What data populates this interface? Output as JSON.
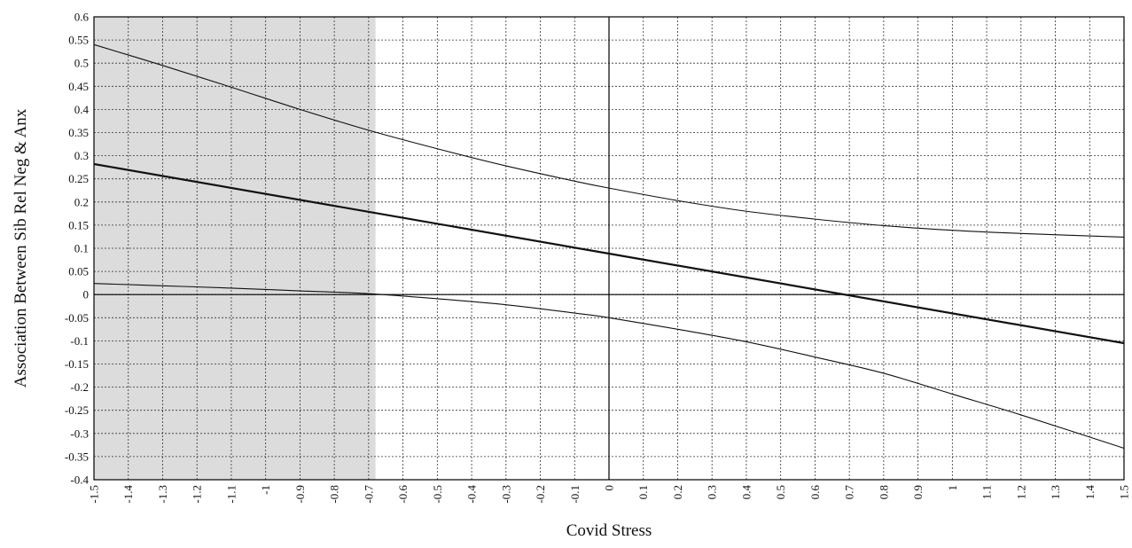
{
  "chart_data": {
    "type": "line",
    "title": "",
    "xlabel": "Covid Stress",
    "ylabel": "Association Between Sib Rel Neg & Anx",
    "xlim": [
      -1.5,
      1.5
    ],
    "ylim": [
      -0.4,
      0.6
    ],
    "x_ticks": [
      "-1.5",
      "-1.4",
      "-1.3",
      "-1.2",
      "-1.1",
      "-1",
      "-0.9",
      "-0.8",
      "-0.7",
      "-0.6",
      "-0.5",
      "-0.4",
      "-0.3",
      "-0.2",
      "-0.1",
      "0",
      "0.1",
      "0.2",
      "0.3",
      "0.4",
      "0.5",
      "0.6",
      "0.7",
      "0.8",
      "0.9",
      "1",
      "1.1",
      "1.2",
      "1.3",
      "1.4",
      "1.5"
    ],
    "y_ticks": [
      "0.6",
      "0.55",
      "0.5",
      "0.45",
      "0.4",
      "0.35",
      "0.3",
      "0.25",
      "0.2",
      "0.15",
      "0.1",
      "0.05",
      "0",
      "-0.05",
      "-0.1",
      "-0.15",
      "-0.2",
      "-0.25",
      "-0.3",
      "-0.35",
      "-0.4"
    ],
    "grid": true,
    "shaded_region": {
      "x_from": -1.5,
      "x_to": -0.68,
      "color": "#dcdcdc"
    },
    "series": [
      {
        "role": "upper-bound",
        "x": [
          -1.5,
          -1.3,
          -1.1,
          -0.9,
          -0.7,
          -0.5,
          -0.3,
          -0.1,
          0,
          0.2,
          0.4,
          0.6,
          0.8,
          1.0,
          1.2,
          1.5
        ],
        "values": [
          0.54,
          0.495,
          0.448,
          0.4,
          0.355,
          0.315,
          0.278,
          0.245,
          0.23,
          0.203,
          0.18,
          0.163,
          0.149,
          0.139,
          0.132,
          0.124
        ]
      },
      {
        "role": "estimate",
        "x": [
          -1.5,
          1.5
        ],
        "values": [
          0.282,
          -0.105
        ]
      },
      {
        "role": "lower-bound",
        "x": [
          -1.5,
          -1.3,
          -1.1,
          -0.9,
          -0.7,
          -0.5,
          -0.3,
          -0.1,
          0,
          0.2,
          0.4,
          0.6,
          0.8,
          1.0,
          1.2,
          1.5
        ],
        "values": [
          0.024,
          0.019,
          0.014,
          0.008,
          0.002,
          -0.009,
          -0.022,
          -0.04,
          -0.05,
          -0.075,
          -0.102,
          -0.135,
          -0.17,
          -0.215,
          -0.26,
          -0.332
        ]
      }
    ],
    "colors": {
      "gridline": "#333333",
      "axis": "#000000",
      "line": "#111111",
      "shade": "#dcdcdc"
    }
  }
}
